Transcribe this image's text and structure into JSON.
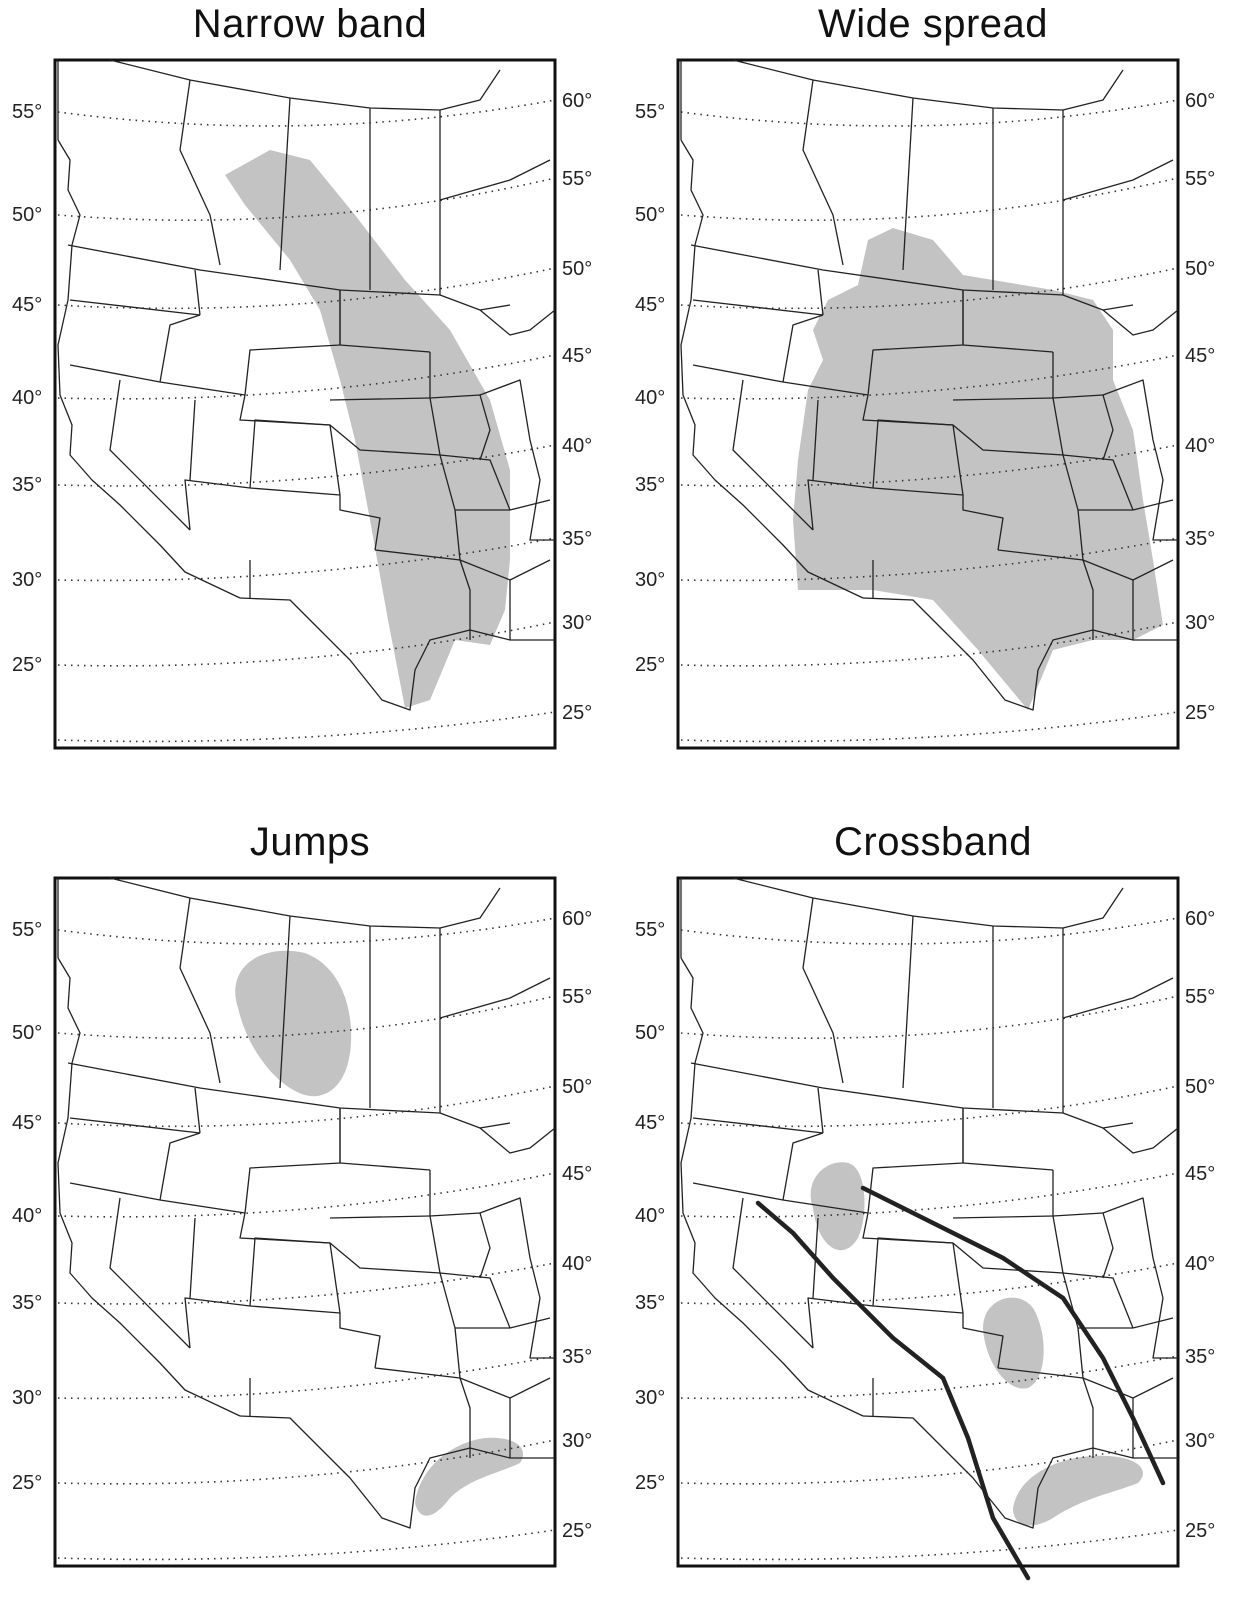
{
  "panels": [
    {
      "id": "narrow",
      "title": "Narrow  band",
      "left_labels": [
        "55°",
        "50°",
        "45°",
        "40°",
        "35°",
        "30°",
        "25°"
      ],
      "right_labels": [
        "60°",
        "55°",
        "50°",
        "45°",
        "40°",
        "35°",
        "30°",
        "25°"
      ]
    },
    {
      "id": "wide",
      "title": "Wide spread",
      "left_labels": [
        "55°",
        "50°",
        "45°",
        "40°",
        "35°",
        "30°",
        "25°"
      ],
      "right_labels": [
        "60°",
        "55°",
        "50°",
        "45°",
        "40°",
        "35°",
        "30°",
        "25°"
      ]
    },
    {
      "id": "jumps",
      "title": "Jumps",
      "left_labels": [
        "55°",
        "50°",
        "45°",
        "40°",
        "35°",
        "30°",
        "25°"
      ],
      "right_labels": [
        "60°",
        "55°",
        "50°",
        "45°",
        "40°",
        "35°",
        "30°",
        "25°"
      ]
    },
    {
      "id": "cross",
      "title": "Crossband",
      "left_labels": [
        "55°",
        "50°",
        "45°",
        "40°",
        "35°",
        "30°",
        "25°"
      ],
      "right_labels": [
        "60°",
        "55°",
        "50°",
        "45°",
        "40°",
        "35°",
        "30°",
        "25°"
      ]
    }
  ],
  "colors": {
    "shading": "#b8b8b8",
    "lines": "#222222",
    "background": "#ffffff"
  }
}
